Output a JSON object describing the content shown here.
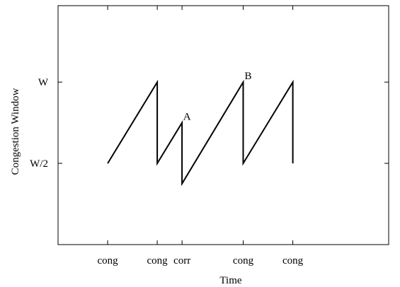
{
  "chart_data": {
    "type": "line",
    "xlabel": "Time",
    "ylabel": "Congestion Window",
    "xlim": [
      0,
      10
    ],
    "ylim": [
      0,
      10
    ],
    "x_ticks": [
      {
        "x": 1.5,
        "label": "cong"
      },
      {
        "x": 3,
        "label": "cong"
      },
      {
        "x": 3.75,
        "label": "corr"
      },
      {
        "x": 5.6,
        "label": "cong"
      },
      {
        "x": 7.1,
        "label": "cong"
      }
    ],
    "y_ticks": [
      {
        "y": 3.4,
        "label": "W/2"
      },
      {
        "y": 6.8,
        "label": "W"
      }
    ],
    "series": [
      {
        "x": [
          1.5,
          3,
          3,
          3.75,
          3.75,
          5.6,
          5.6,
          7.1,
          7.1
        ],
        "y": [
          3.4,
          6.8,
          3.4,
          5.1,
          2.55,
          6.8,
          3.4,
          6.8,
          3.4
        ]
      }
    ],
    "annotations": [
      {
        "text": "A",
        "x": 3.75,
        "y": 5.1
      },
      {
        "text": "B",
        "x": 5.6,
        "y": 6.8
      }
    ],
    "grid": false
  }
}
